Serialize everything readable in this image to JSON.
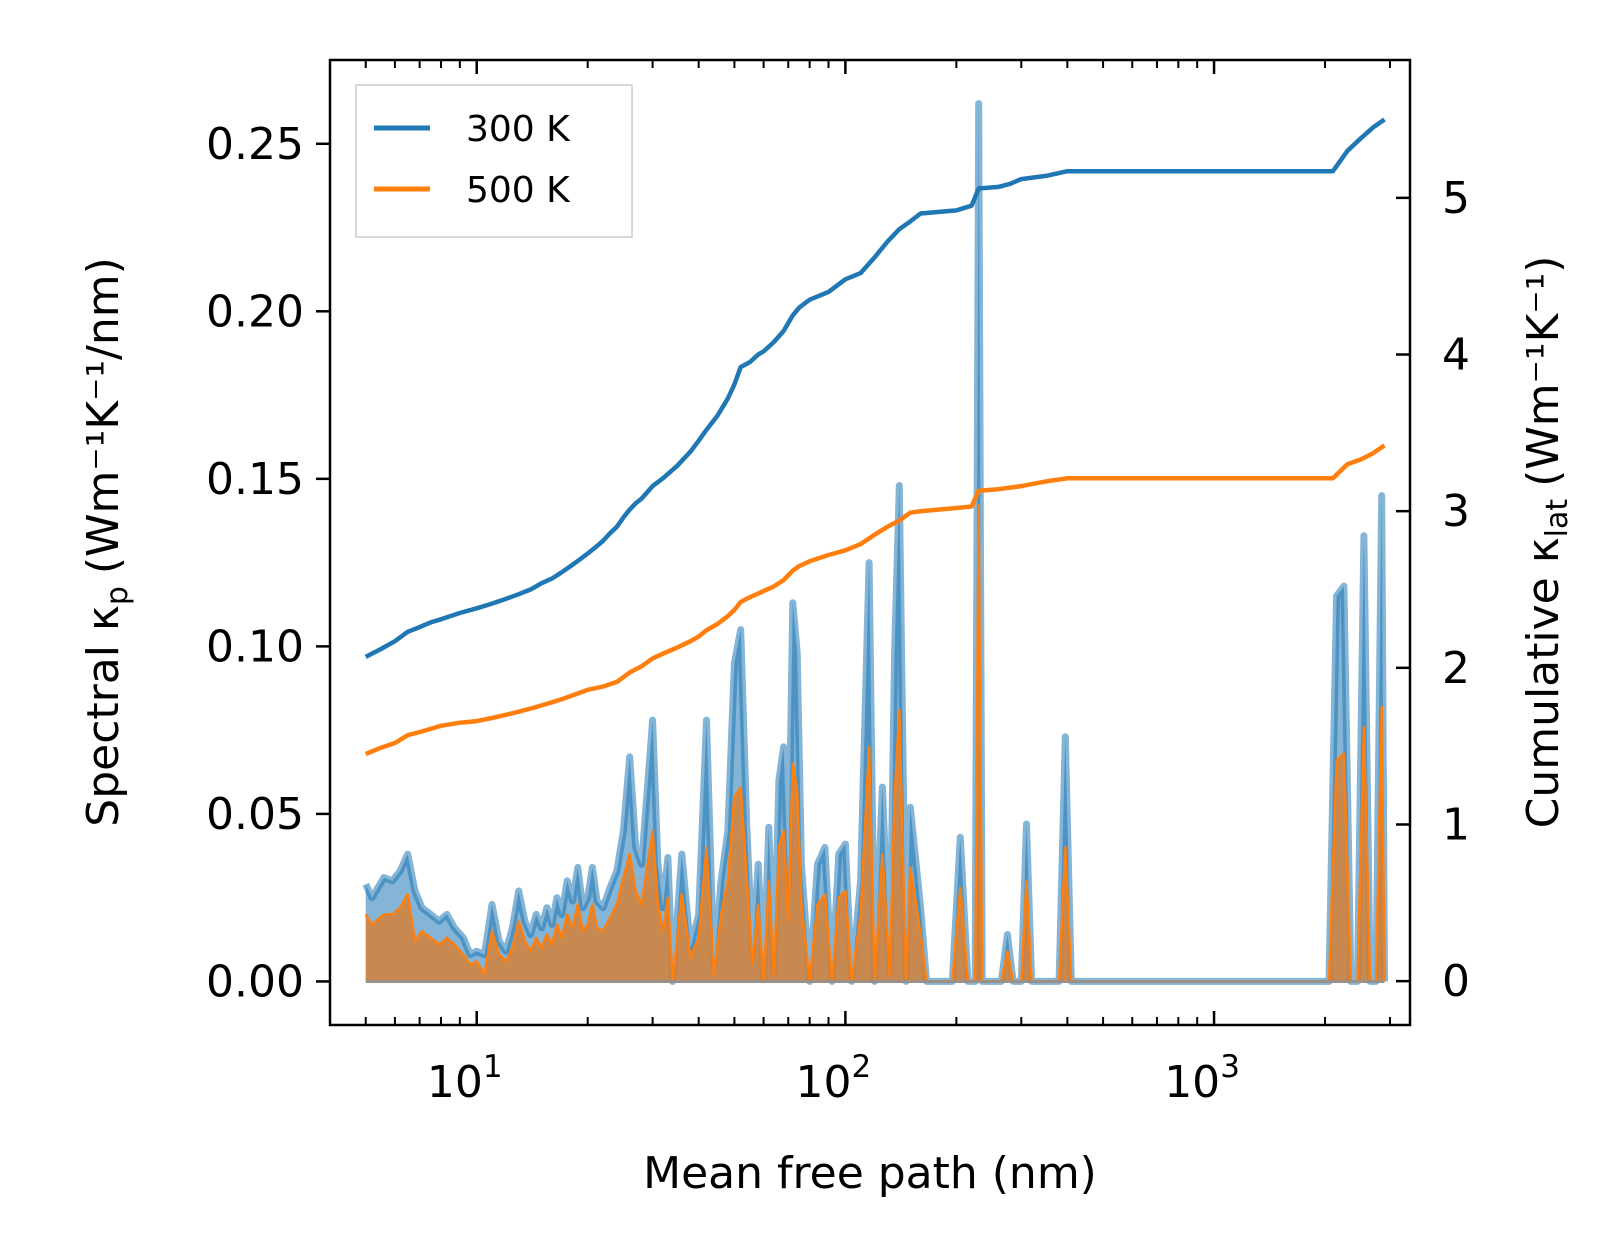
{
  "chart_data": {
    "type": "line",
    "xscale": "log",
    "xlabel": "Mean free path (nm)",
    "ylabel_left": {
      "text": "Spectral κ",
      "sub": "p",
      "units": "(Wm⁻¹K⁻¹/nm)"
    },
    "ylabel_right": {
      "text": "Cumulative κ",
      "sub": "lat",
      "units": "(Wm⁻¹K⁻¹)"
    },
    "xlim": [
      4.0,
      3400
    ],
    "ylim_left": [
      -0.013,
      0.275
    ],
    "ylim_right": [
      -0.28,
      5.88
    ],
    "x_ticks": [
      {
        "value": 10,
        "base": "10",
        "exp": "1"
      },
      {
        "value": 100,
        "base": "10",
        "exp": "2"
      },
      {
        "value": 1000,
        "base": "10",
        "exp": "3"
      }
    ],
    "y_ticks_left": [
      "0.00",
      "0.05",
      "0.10",
      "0.15",
      "0.20",
      "0.25"
    ],
    "y_ticks_left_values": [
      0,
      0.05,
      0.1,
      0.15,
      0.2,
      0.25
    ],
    "y_ticks_right": [
      "0",
      "1",
      "2",
      "3",
      "4",
      "5"
    ],
    "y_ticks_right_values": [
      0,
      1,
      2,
      3,
      4,
      5
    ],
    "legend": {
      "location": "upper-left",
      "entries": [
        {
          "label": "300 K",
          "color": "#1f77b4"
        },
        {
          "label": "500 K",
          "color": "#ff7f0e"
        }
      ]
    },
    "series": [
      {
        "name": "300 K",
        "color": "#1f77b4",
        "cumulative": [
          [
            5.0,
            2.07
          ],
          [
            5.5,
            2.12
          ],
          [
            6.0,
            2.17
          ],
          [
            6.5,
            2.23
          ],
          [
            7.0,
            2.26
          ],
          [
            7.5,
            2.29
          ],
          [
            8.0,
            2.31
          ],
          [
            9.0,
            2.35
          ],
          [
            10.0,
            2.38
          ],
          [
            11.0,
            2.41
          ],
          [
            12.0,
            2.44
          ],
          [
            13.0,
            2.47
          ],
          [
            14.0,
            2.5
          ],
          [
            15.0,
            2.54
          ],
          [
            16.0,
            2.57
          ],
          [
            17.0,
            2.61
          ],
          [
            18.0,
            2.65
          ],
          [
            19.0,
            2.69
          ],
          [
            20.0,
            2.73
          ],
          [
            21.0,
            2.77
          ],
          [
            22.0,
            2.81
          ],
          [
            23.0,
            2.86
          ],
          [
            24.0,
            2.9
          ],
          [
            25.0,
            2.96
          ],
          [
            26.0,
            3.01
          ],
          [
            27.0,
            3.05
          ],
          [
            28.0,
            3.08
          ],
          [
            30.0,
            3.16
          ],
          [
            32.0,
            3.21
          ],
          [
            35.0,
            3.29
          ],
          [
            38.0,
            3.38
          ],
          [
            40.0,
            3.45
          ],
          [
            42.0,
            3.52
          ],
          [
            45.0,
            3.61
          ],
          [
            48.0,
            3.72
          ],
          [
            50.0,
            3.81
          ],
          [
            52.0,
            3.92
          ],
          [
            55.0,
            3.95
          ],
          [
            58.0,
            4.0
          ],
          [
            60.0,
            4.02
          ],
          [
            64.0,
            4.08
          ],
          [
            68.0,
            4.15
          ],
          [
            72.0,
            4.25
          ],
          [
            75.0,
            4.3
          ],
          [
            80.0,
            4.35
          ],
          [
            90.0,
            4.4
          ],
          [
            100.0,
            4.48
          ],
          [
            110.0,
            4.52
          ],
          [
            120.0,
            4.62
          ],
          [
            130.0,
            4.72
          ],
          [
            140.0,
            4.8
          ],
          [
            150.0,
            4.85
          ],
          [
            160.0,
            4.9
          ],
          [
            200.0,
            4.92
          ],
          [
            220.0,
            4.95
          ],
          [
            230.0,
            5.06
          ],
          [
            260.0,
            5.07
          ],
          [
            280.0,
            5.09
          ],
          [
            300.0,
            5.12
          ],
          [
            350.0,
            5.14
          ],
          [
            400.0,
            5.17
          ],
          [
            1000.0,
            5.17
          ],
          [
            2100.0,
            5.17
          ],
          [
            2300.0,
            5.3
          ],
          [
            2500.0,
            5.38
          ],
          [
            2700.0,
            5.45
          ],
          [
            2900.0,
            5.5
          ]
        ]
      },
      {
        "name": "500 K",
        "color": "#ff7f0e",
        "cumulative": [
          [
            5.0,
            1.45
          ],
          [
            5.5,
            1.49
          ],
          [
            6.0,
            1.52
          ],
          [
            6.5,
            1.57
          ],
          [
            7.0,
            1.59
          ],
          [
            7.5,
            1.61
          ],
          [
            8.0,
            1.63
          ],
          [
            9.0,
            1.65
          ],
          [
            10.0,
            1.66
          ],
          [
            11.0,
            1.68
          ],
          [
            12.0,
            1.7
          ],
          [
            13.0,
            1.72
          ],
          [
            14.0,
            1.74
          ],
          [
            15.0,
            1.76
          ],
          [
            16.0,
            1.78
          ],
          [
            17.0,
            1.8
          ],
          [
            18.0,
            1.82
          ],
          [
            19.0,
            1.84
          ],
          [
            20.0,
            1.86
          ],
          [
            22.0,
            1.88
          ],
          [
            24.0,
            1.91
          ],
          [
            25.0,
            1.94
          ],
          [
            26.0,
            1.97
          ],
          [
            28.0,
            2.01
          ],
          [
            30.0,
            2.06
          ],
          [
            32.0,
            2.09
          ],
          [
            35.0,
            2.13
          ],
          [
            38.0,
            2.17
          ],
          [
            40.0,
            2.2
          ],
          [
            42.0,
            2.24
          ],
          [
            45.0,
            2.28
          ],
          [
            48.0,
            2.33
          ],
          [
            50.0,
            2.37
          ],
          [
            52.0,
            2.42
          ],
          [
            55.0,
            2.45
          ],
          [
            60.0,
            2.49
          ],
          [
            64.0,
            2.52
          ],
          [
            68.0,
            2.56
          ],
          [
            72.0,
            2.62
          ],
          [
            75.0,
            2.65
          ],
          [
            80.0,
            2.68
          ],
          [
            90.0,
            2.72
          ],
          [
            100.0,
            2.75
          ],
          [
            110.0,
            2.79
          ],
          [
            120.0,
            2.85
          ],
          [
            130.0,
            2.9
          ],
          [
            140.0,
            2.94
          ],
          [
            150.0,
            2.99
          ],
          [
            160.0,
            3.0
          ],
          [
            200.0,
            3.02
          ],
          [
            220.0,
            3.03
          ],
          [
            230.0,
            3.13
          ],
          [
            260.0,
            3.14
          ],
          [
            300.0,
            3.16
          ],
          [
            350.0,
            3.19
          ],
          [
            400.0,
            3.21
          ],
          [
            1000.0,
            3.21
          ],
          [
            2100.0,
            3.21
          ],
          [
            2300.0,
            3.3
          ],
          [
            2500.0,
            3.33
          ],
          [
            2700.0,
            3.37
          ],
          [
            2900.0,
            3.42
          ]
        ]
      }
    ],
    "spectral_300K": [
      [
        5.0,
        0.029
      ],
      [
        5.2,
        0.025
      ],
      [
        5.6,
        0.031
      ],
      [
        5.9,
        0.03
      ],
      [
        6.2,
        0.033
      ],
      [
        6.5,
        0.038
      ],
      [
        6.8,
        0.027
      ],
      [
        7.1,
        0.022
      ],
      [
        7.5,
        0.02
      ],
      [
        7.9,
        0.018
      ],
      [
        8.3,
        0.02
      ],
      [
        8.7,
        0.016
      ],
      [
        9.2,
        0.013
      ],
      [
        9.6,
        0.008
      ],
      [
        10.0,
        0.009
      ],
      [
        10.5,
        0.008
      ],
      [
        11.0,
        0.023
      ],
      [
        11.5,
        0.012
      ],
      [
        12.0,
        0.009
      ],
      [
        12.5,
        0.016
      ],
      [
        13.0,
        0.027
      ],
      [
        13.5,
        0.018
      ],
      [
        14.0,
        0.014
      ],
      [
        14.5,
        0.02
      ],
      [
        15.0,
        0.016
      ],
      [
        15.5,
        0.022
      ],
      [
        16.0,
        0.017
      ],
      [
        16.5,
        0.025
      ],
      [
        17.0,
        0.02
      ],
      [
        17.6,
        0.03
      ],
      [
        18.2,
        0.024
      ],
      [
        18.8,
        0.034
      ],
      [
        19.4,
        0.022
      ],
      [
        20.0,
        0.025
      ],
      [
        20.6,
        0.034
      ],
      [
        21.2,
        0.024
      ],
      [
        22.0,
        0.022
      ],
      [
        23.0,
        0.028
      ],
      [
        24.0,
        0.033
      ],
      [
        25.0,
        0.045
      ],
      [
        26.0,
        0.067
      ],
      [
        27.0,
        0.04
      ],
      [
        28.0,
        0.035
      ],
      [
        30.0,
        0.078
      ],
      [
        31.0,
        0.035
      ],
      [
        32.0,
        0.022
      ],
      [
        33.0,
        0.037
      ],
      [
        34.0,
        0.0
      ],
      [
        36.0,
        0.038
      ],
      [
        38.0,
        0.01
      ],
      [
        40.0,
        0.02
      ],
      [
        42.0,
        0.078
      ],
      [
        44.0,
        0.004
      ],
      [
        46.0,
        0.03
      ],
      [
        48.0,
        0.045
      ],
      [
        50.0,
        0.095
      ],
      [
        52.0,
        0.105
      ],
      [
        54.0,
        0.047
      ],
      [
        56.0,
        0.008
      ],
      [
        58.0,
        0.035
      ],
      [
        60.0,
        0.001
      ],
      [
        62.0,
        0.046
      ],
      [
        64.0,
        0.003
      ],
      [
        66.0,
        0.06
      ],
      [
        68.0,
        0.07
      ],
      [
        70.0,
        0.028
      ],
      [
        72.0,
        0.113
      ],
      [
        74.0,
        0.098
      ],
      [
        76.0,
        0.035
      ],
      [
        80.0,
        0.0
      ],
      [
        84.0,
        0.035
      ],
      [
        88.0,
        0.04
      ],
      [
        92.0,
        0.0
      ],
      [
        96.0,
        0.038
      ],
      [
        100.0,
        0.041
      ],
      [
        104.0,
        0.0
      ],
      [
        110.0,
        0.03
      ],
      [
        116.0,
        0.125
      ],
      [
        120.0,
        0.0
      ],
      [
        126.0,
        0.058
      ],
      [
        132.0,
        0.003
      ],
      [
        136.0,
        0.098
      ],
      [
        140.0,
        0.148
      ],
      [
        146.0,
        0.0
      ],
      [
        150.0,
        0.052
      ],
      [
        160.0,
        0.022
      ],
      [
        166.0,
        0.0
      ],
      [
        195.0,
        0.0
      ],
      [
        205.0,
        0.043
      ],
      [
        215.0,
        0.0
      ],
      [
        225.0,
        0.0
      ],
      [
        230.0,
        0.262
      ],
      [
        235.0,
        0.0
      ],
      [
        265.0,
        0.0
      ],
      [
        275.0,
        0.014
      ],
      [
        285.0,
        0.0
      ],
      [
        300.0,
        0.0
      ],
      [
        310.0,
        0.047
      ],
      [
        320.0,
        0.0
      ],
      [
        380.0,
        0.0
      ],
      [
        395.0,
        0.073
      ],
      [
        410.0,
        0.0
      ],
      [
        2050.0,
        0.0
      ],
      [
        2150.0,
        0.115
      ],
      [
        2250.0,
        0.118
      ],
      [
        2350.0,
        0.0
      ],
      [
        2450.0,
        0.0
      ],
      [
        2550.0,
        0.133
      ],
      [
        2650.0,
        0.0
      ],
      [
        2750.0,
        0.0
      ],
      [
        2850.0,
        0.145
      ],
      [
        2900.0,
        0.0
      ]
    ],
    "spectral_500K": [
      [
        5.0,
        0.02
      ],
      [
        5.2,
        0.017
      ],
      [
        5.6,
        0.02
      ],
      [
        5.9,
        0.02
      ],
      [
        6.2,
        0.022
      ],
      [
        6.5,
        0.026
      ],
      [
        6.8,
        0.012
      ],
      [
        7.1,
        0.015
      ],
      [
        7.5,
        0.013
      ],
      [
        7.9,
        0.011
      ],
      [
        8.3,
        0.013
      ],
      [
        8.7,
        0.011
      ],
      [
        9.2,
        0.008
      ],
      [
        9.6,
        0.005
      ],
      [
        10.0,
        0.006
      ],
      [
        10.5,
        0.002
      ],
      [
        11.0,
        0.015
      ],
      [
        11.5,
        0.008
      ],
      [
        12.0,
        0.006
      ],
      [
        12.5,
        0.01
      ],
      [
        13.0,
        0.018
      ],
      [
        13.5,
        0.012
      ],
      [
        14.0,
        0.009
      ],
      [
        14.5,
        0.013
      ],
      [
        15.0,
        0.01
      ],
      [
        15.5,
        0.014
      ],
      [
        16.0,
        0.011
      ],
      [
        16.5,
        0.017
      ],
      [
        17.0,
        0.013
      ],
      [
        17.6,
        0.02
      ],
      [
        18.2,
        0.016
      ],
      [
        18.8,
        0.023
      ],
      [
        19.4,
        0.015
      ],
      [
        20.0,
        0.017
      ],
      [
        20.6,
        0.023
      ],
      [
        21.2,
        0.016
      ],
      [
        22.0,
        0.015
      ],
      [
        23.0,
        0.019
      ],
      [
        24.0,
        0.023
      ],
      [
        25.0,
        0.031
      ],
      [
        26.0,
        0.038
      ],
      [
        27.0,
        0.027
      ],
      [
        28.0,
        0.023
      ],
      [
        30.0,
        0.045
      ],
      [
        31.0,
        0.023
      ],
      [
        32.0,
        0.015
      ],
      [
        33.0,
        0.025
      ],
      [
        34.0,
        0.0
      ],
      [
        36.0,
        0.026
      ],
      [
        38.0,
        0.007
      ],
      [
        40.0,
        0.013
      ],
      [
        42.0,
        0.04
      ],
      [
        44.0,
        0.002
      ],
      [
        46.0,
        0.02
      ],
      [
        48.0,
        0.03
      ],
      [
        50.0,
        0.055
      ],
      [
        52.0,
        0.058
      ],
      [
        54.0,
        0.031
      ],
      [
        56.0,
        0.005
      ],
      [
        58.0,
        0.023
      ],
      [
        60.0,
        0.0
      ],
      [
        62.0,
        0.03
      ],
      [
        64.0,
        0.002
      ],
      [
        66.0,
        0.04
      ],
      [
        68.0,
        0.045
      ],
      [
        70.0,
        0.018
      ],
      [
        72.0,
        0.065
      ],
      [
        74.0,
        0.057
      ],
      [
        76.0,
        0.023
      ],
      [
        80.0,
        0.0
      ],
      [
        84.0,
        0.023
      ],
      [
        88.0,
        0.026
      ],
      [
        92.0,
        0.0
      ],
      [
        96.0,
        0.025
      ],
      [
        100.0,
        0.027
      ],
      [
        104.0,
        0.0
      ],
      [
        110.0,
        0.02
      ],
      [
        116.0,
        0.07
      ],
      [
        120.0,
        0.0
      ],
      [
        126.0,
        0.038
      ],
      [
        132.0,
        0.002
      ],
      [
        136.0,
        0.055
      ],
      [
        140.0,
        0.081
      ],
      [
        146.0,
        0.0
      ],
      [
        150.0,
        0.034
      ],
      [
        160.0,
        0.014
      ],
      [
        166.0,
        0.0
      ],
      [
        195.0,
        0.0
      ],
      [
        205.0,
        0.028
      ],
      [
        215.0,
        0.0
      ],
      [
        225.0,
        0.0
      ],
      [
        230.0,
        0.142
      ],
      [
        235.0,
        0.0
      ],
      [
        265.0,
        0.0
      ],
      [
        275.0,
        0.009
      ],
      [
        285.0,
        0.0
      ],
      [
        300.0,
        0.0
      ],
      [
        310.0,
        0.03
      ],
      [
        320.0,
        0.0
      ],
      [
        380.0,
        0.0
      ],
      [
        395.0,
        0.04
      ],
      [
        410.0,
        0.0
      ],
      [
        2050.0,
        0.0
      ],
      [
        2150.0,
        0.066
      ],
      [
        2250.0,
        0.068
      ],
      [
        2350.0,
        0.0
      ],
      [
        2450.0,
        0.0
      ],
      [
        2550.0,
        0.076
      ],
      [
        2650.0,
        0.0
      ],
      [
        2750.0,
        0.0
      ],
      [
        2850.0,
        0.082
      ],
      [
        2900.0,
        0.0
      ]
    ]
  }
}
